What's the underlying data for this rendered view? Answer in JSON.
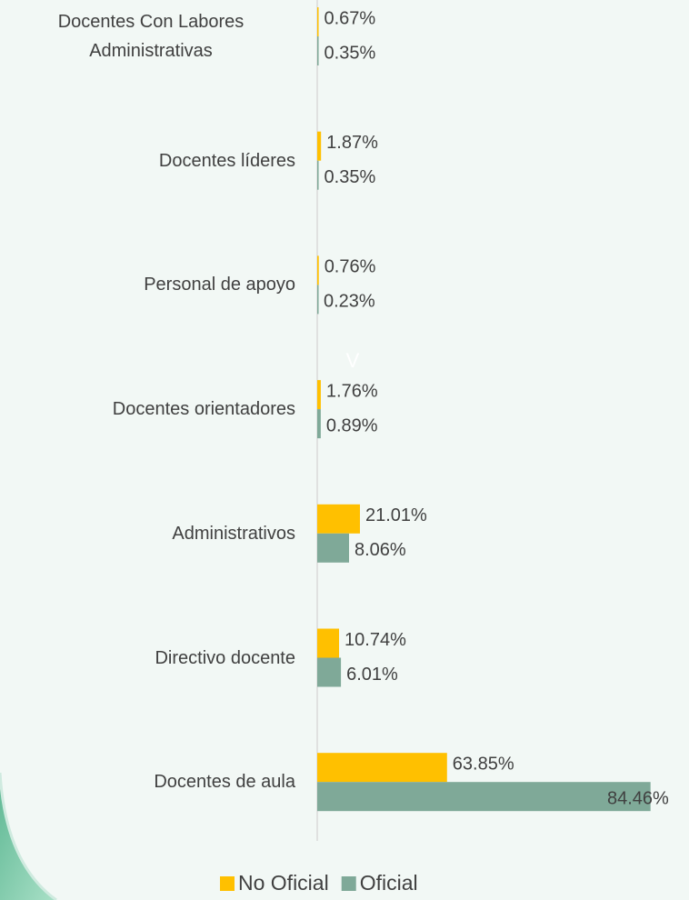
{
  "chart_data": {
    "type": "bar",
    "orientation": "horizontal",
    "categories": [
      "Docentes Con Labores Administrativas",
      "Docentes líderes",
      "Personal de apoyo",
      "Docentes orientadores",
      "Administrativos",
      "Directivo docente",
      "Docentes de aula"
    ],
    "series": [
      {
        "name": "No Oficial",
        "color": "#ffc000",
        "axis": "x2",
        "values": [
          0.67,
          1.87,
          0.76,
          1.76,
          21.01,
          10.74,
          63.85
        ],
        "value_labels": [
          "0.67%",
          "1.87%",
          "0.76%",
          "1.76%",
          "21.01%",
          "10.74%",
          "63.85%"
        ]
      },
      {
        "name": "Oficial",
        "color": "#7fa998",
        "values": [
          0.35,
          0.35,
          0.23,
          0.89,
          8.06,
          6.01,
          84.46
        ],
        "value_labels": [
          "0.35%",
          "0.35%",
          "0.23%",
          "0.89%",
          "8.06%",
          "6.01%",
          "84.46%"
        ]
      }
    ],
    "xlim": [
      0,
      85
    ],
    "x2lim": [
      0,
      165
    ],
    "legend": "bottom",
    "annotation": "V"
  }
}
